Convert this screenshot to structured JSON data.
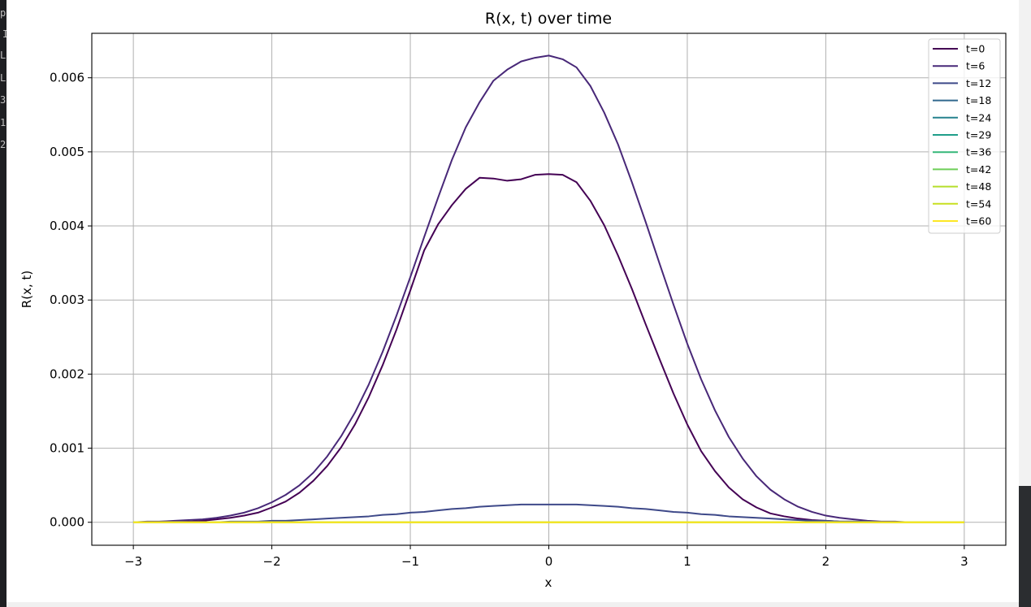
{
  "window": {
    "left_strip_glyphs": [
      "p",
      "I",
      "L",
      "L",
      "3",
      "1",
      "2"
    ]
  },
  "chart_data": {
    "type": "line",
    "title": "R(x, t) over time",
    "xlabel": "x",
    "ylabel": "R(x, t)",
    "xlim": [
      -3.3,
      3.3
    ],
    "ylim": [
      -0.00031,
      0.0066
    ],
    "xticks": [
      -3,
      -2,
      -1,
      0,
      1,
      2,
      3
    ],
    "xtick_labels": [
      "−3",
      "−2",
      "−1",
      "0",
      "1",
      "2",
      "3"
    ],
    "yticks": [
      0.0,
      0.001,
      0.002,
      0.003,
      0.004,
      0.005,
      0.006
    ],
    "ytick_labels": [
      "0.000",
      "0.001",
      "0.002",
      "0.003",
      "0.004",
      "0.005",
      "0.006"
    ],
    "grid": true,
    "legend_position": "top-right",
    "x": [
      -3.0,
      -2.9,
      -2.8,
      -2.7,
      -2.6,
      -2.5,
      -2.4,
      -2.3,
      -2.2,
      -2.1,
      -2.0,
      -1.9,
      -1.8,
      -1.7,
      -1.6,
      -1.5,
      -1.4,
      -1.3,
      -1.2,
      -1.1,
      -1.0,
      -0.9,
      -0.8,
      -0.7,
      -0.6,
      -0.5,
      -0.4,
      -0.3,
      -0.2,
      -0.1,
      0.0,
      0.1,
      0.2,
      0.3,
      0.4,
      0.5,
      0.6,
      0.7,
      0.8,
      0.9,
      1.0,
      1.1,
      1.2,
      1.3,
      1.4,
      1.5,
      1.6,
      1.7,
      1.8,
      1.9,
      2.0,
      2.1,
      2.2,
      2.3,
      2.4,
      2.5,
      2.6,
      2.7,
      2.8,
      2.9,
      3.0
    ],
    "series": [
      {
        "name": "t=0",
        "color": "#440154",
        "values": [
          0.0,
          0.0,
          1e-05,
          1e-05,
          1e-05,
          2e-05,
          4e-05,
          6e-05,
          9e-05,
          0.00013,
          0.0002,
          0.00028,
          0.0004,
          0.00056,
          0.00076,
          0.00101,
          0.00132,
          0.00169,
          0.00212,
          0.0026,
          0.00313,
          0.00367,
          0.00402,
          0.00428,
          0.0045,
          0.00465,
          0.00464,
          0.00461,
          0.00463,
          0.00469,
          0.0047,
          0.00469,
          0.00459,
          0.00434,
          0.00401,
          0.0036,
          0.00315,
          0.00267,
          0.0022,
          0.00174,
          0.00132,
          0.00096,
          0.00069,
          0.00047,
          0.00031,
          0.0002,
          0.00012,
          8e-05,
          5e-05,
          3e-05,
          2e-05,
          1e-05,
          1e-05,
          0.0,
          0.0,
          0.0,
          0.0,
          0.0,
          0.0,
          0.0,
          0.0
        ]
      },
      {
        "name": "t=6",
        "color": "#482878",
        "values": [
          0.0,
          1e-05,
          1e-05,
          2e-05,
          3e-05,
          4e-05,
          6e-05,
          9e-05,
          0.00013,
          0.00019,
          0.00027,
          0.00037,
          0.0005,
          0.00067,
          0.00089,
          0.00116,
          0.00148,
          0.00186,
          0.0023,
          0.00279,
          0.00331,
          0.00385,
          0.00438,
          0.00489,
          0.00533,
          0.00567,
          0.00596,
          0.00611,
          0.00622,
          0.00627,
          0.0063,
          0.00625,
          0.00614,
          0.00589,
          0.00553,
          0.0051,
          0.00459,
          0.00405,
          0.00349,
          0.00294,
          0.00241,
          0.00193,
          0.00151,
          0.00115,
          0.00086,
          0.00062,
          0.00044,
          0.00031,
          0.00021,
          0.00014,
          9e-05,
          6e-05,
          4e-05,
          2e-05,
          1e-05,
          1e-05,
          0.0,
          0.0,
          0.0,
          0.0,
          0.0
        ]
      },
      {
        "name": "t=12",
        "color": "#3e4989",
        "values": [
          0.0,
          0.0,
          0.0,
          0.0,
          0.0,
          0.0,
          0.0,
          1e-05,
          1e-05,
          1e-05,
          2e-05,
          2e-05,
          3e-05,
          4e-05,
          5e-05,
          6e-05,
          7e-05,
          8e-05,
          0.0001,
          0.00011,
          0.00013,
          0.00014,
          0.00016,
          0.00018,
          0.00019,
          0.00021,
          0.00022,
          0.00023,
          0.00024,
          0.00024,
          0.00024,
          0.00024,
          0.00024,
          0.00023,
          0.00022,
          0.00021,
          0.00019,
          0.00018,
          0.00016,
          0.00014,
          0.00013,
          0.00011,
          0.0001,
          8e-05,
          7e-05,
          6e-05,
          5e-05,
          4e-05,
          3e-05,
          2e-05,
          2e-05,
          1e-05,
          1e-05,
          1e-05,
          0.0,
          0.0,
          0.0,
          0.0,
          0.0,
          0.0,
          0.0
        ]
      },
      {
        "name": "t=18",
        "color": "#31688e",
        "values": "zeros"
      },
      {
        "name": "t=24",
        "color": "#26828e",
        "values": "zeros"
      },
      {
        "name": "t=29",
        "color": "#1f9e89",
        "values": "zeros"
      },
      {
        "name": "t=36",
        "color": "#35b779",
        "values": "zeros"
      },
      {
        "name": "t=42",
        "color": "#6ece58",
        "values": "zeros"
      },
      {
        "name": "t=48",
        "color": "#b5de2b",
        "values": "zeros"
      },
      {
        "name": "t=54",
        "color": "#c8e020",
        "values": "zeros"
      },
      {
        "name": "t=60",
        "color": "#fde725",
        "values": "zeros"
      }
    ]
  }
}
